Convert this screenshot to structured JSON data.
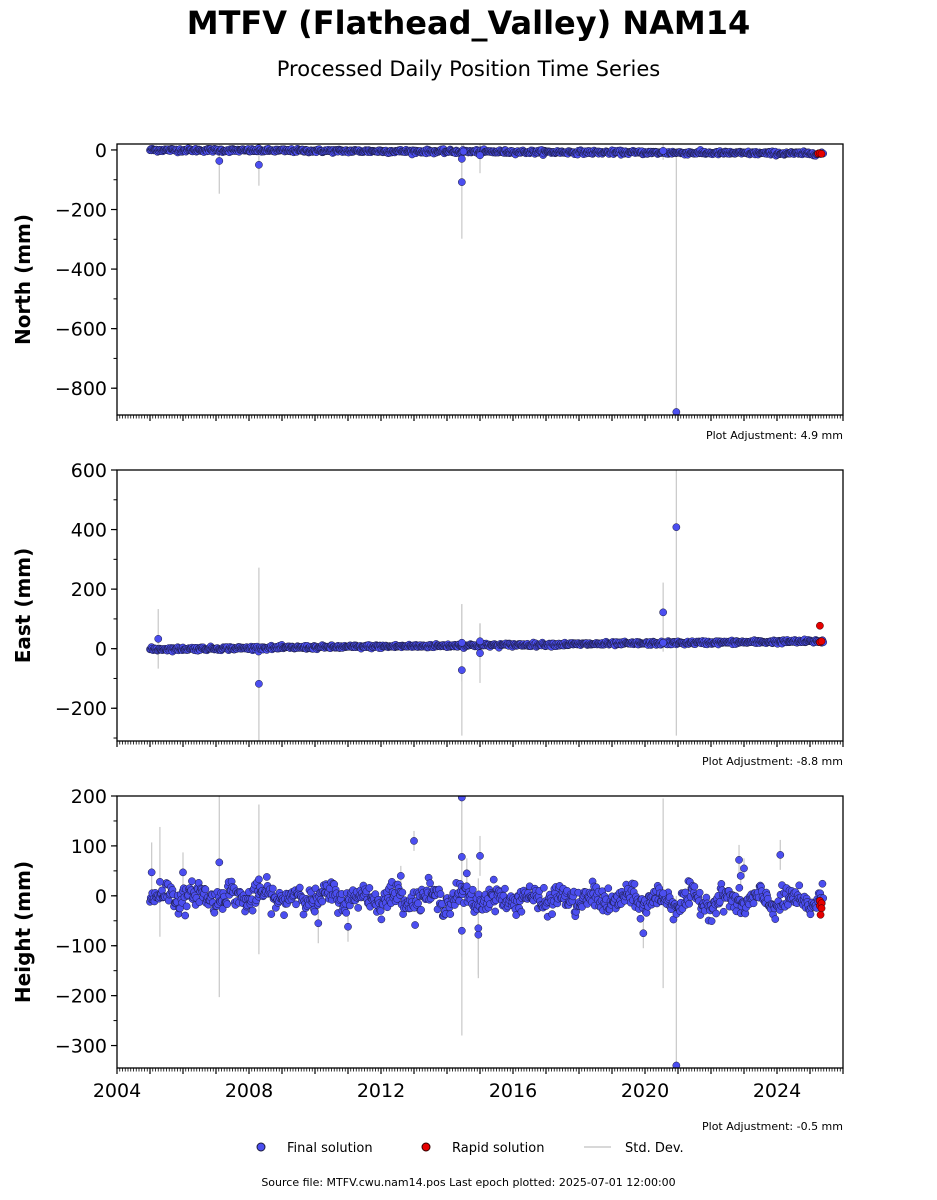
{
  "title": "MTFV (Flathead_Valley) NAM14",
  "subtitle": "Processed Daily Position Time Series",
  "footer": "Source file: MTFV.cwu.nam14.pos  Last epoch plotted: 2025-07-01 12:00:00",
  "colors": {
    "final": "#4b4ef0",
    "rapid": "#e60000",
    "stddev": "#cccccc",
    "edge": "#1a1a3a"
  },
  "legend": {
    "final_label": "Final solution",
    "rapid_label": "Rapid solution",
    "stddev_label": "Std. Dev."
  },
  "chart_data": [
    {
      "type": "scatter",
      "name_key": "north",
      "ylabel": "North (mm)",
      "xlim": [
        2004.0,
        2026.0
      ],
      "ylim": [
        -890,
        20
      ],
      "yticks": [
        0,
        -200,
        -400,
        -600,
        -800
      ],
      "yticklabels": [
        "0",
        "−200",
        "−400",
        "−600",
        "−800"
      ],
      "adjustment": "Plot Adjustment: 4.9 mm",
      "trend": {
        "x": [
          2005.0,
          2025.4
        ],
        "y": [
          0,
          -12
        ],
        "noise": 3
      },
      "outliers": [
        {
          "x": 2007.1,
          "y": -37,
          "err": 110
        },
        {
          "x": 2008.3,
          "y": -50,
          "err": 70
        },
        {
          "x": 2014.45,
          "y": -108,
          "err": 190
        },
        {
          "x": 2014.45,
          "y": -30,
          "err": 60
        },
        {
          "x": 2014.5,
          "y": -5,
          "err": 30
        },
        {
          "x": 2015.0,
          "y": -18,
          "err": 60
        },
        {
          "x": 2020.55,
          "y": -3,
          "err": 30
        },
        {
          "x": 2020.95,
          "y": -880,
          "err": 880
        }
      ],
      "rapid": [
        {
          "x": 2025.25,
          "y": -12
        },
        {
          "x": 2025.3,
          "y": -11
        },
        {
          "x": 2025.35,
          "y": -13
        }
      ]
    },
    {
      "type": "scatter",
      "name_key": "east",
      "ylabel": "East (mm)",
      "xlim": [
        2004.0,
        2026.0
      ],
      "ylim": [
        -310,
        600
      ],
      "yticks": [
        600,
        400,
        200,
        0,
        -200
      ],
      "yticklabels": [
        "600",
        "400",
        "200",
        "0",
        "−200"
      ],
      "adjustment": "Plot Adjustment: -8.8 mm",
      "trend": {
        "x": [
          2005.0,
          2025.4
        ],
        "y": [
          -2,
          25
        ],
        "noise": 3
      },
      "outliers": [
        {
          "x": 2005.25,
          "y": 33,
          "err": 100
        },
        {
          "x": 2008.3,
          "y": -118,
          "err": 390
        },
        {
          "x": 2014.45,
          "y": -72,
          "err": 220
        },
        {
          "x": 2014.45,
          "y": 20,
          "err": 130
        },
        {
          "x": 2015.0,
          "y": -15,
          "err": 100
        },
        {
          "x": 2015.0,
          "y": 25,
          "err": 60
        },
        {
          "x": 2020.55,
          "y": 122,
          "err": 100
        },
        {
          "x": 2020.55,
          "y": 20,
          "err": 30
        },
        {
          "x": 2020.95,
          "y": 408,
          "err": 700
        }
      ],
      "rapid": [
        {
          "x": 2025.3,
          "y": 77
        },
        {
          "x": 2025.3,
          "y": 22
        },
        {
          "x": 2025.35,
          "y": 25
        }
      ]
    },
    {
      "type": "scatter",
      "name_key": "height",
      "ylabel": "Height (mm)",
      "xlim": [
        2004.0,
        2026.0
      ],
      "ylim": [
        -345,
        200
      ],
      "yticks": [
        200,
        100,
        0,
        -100,
        -200,
        -300
      ],
      "yticklabels": [
        "200",
        "100",
        "0",
        "−100",
        "−200",
        "−300"
      ],
      "adjustment": "Plot Adjustment: -0.5 mm",
      "xticks": [
        2004,
        2008,
        2012,
        2016,
        2020,
        2024
      ],
      "xticklabels": [
        "2004",
        "2008",
        "2012",
        "2016",
        "2020",
        "2024"
      ],
      "trend": {
        "x": [
          2005.0,
          2025.4
        ],
        "y": [
          0,
          -12
        ],
        "noise": 12
      },
      "outliers": [
        {
          "x": 2005.05,
          "y": 47,
          "err": 60
        },
        {
          "x": 2005.3,
          "y": 28,
          "err": 110
        },
        {
          "x": 2006.0,
          "y": 47,
          "err": 40
        },
        {
          "x": 2007.1,
          "y": 67,
          "err": 270
        },
        {
          "x": 2008.3,
          "y": 33,
          "err": 150
        },
        {
          "x": 2010.1,
          "y": -55,
          "err": 40
        },
        {
          "x": 2011.0,
          "y": -62,
          "err": 30
        },
        {
          "x": 2012.6,
          "y": 40,
          "err": 20
        },
        {
          "x": 2013.0,
          "y": 110,
          "err": 20
        },
        {
          "x": 2014.45,
          "y": 197,
          "err": 60
        },
        {
          "x": 2014.45,
          "y": 78,
          "err": 200
        },
        {
          "x": 2014.45,
          "y": -70,
          "err": 210
        },
        {
          "x": 2014.6,
          "y": 45,
          "err": 30
        },
        {
          "x": 2015.0,
          "y": 80,
          "err": 40
        },
        {
          "x": 2014.95,
          "y": -65,
          "err": 100
        },
        {
          "x": 2014.95,
          "y": -78,
          "err": 80
        },
        {
          "x": 2019.95,
          "y": -75,
          "err": 30
        },
        {
          "x": 2020.55,
          "y": 5,
          "err": 190
        },
        {
          "x": 2020.95,
          "y": -340,
          "err": 340
        },
        {
          "x": 2022.85,
          "y": 72,
          "err": 30
        },
        {
          "x": 2022.9,
          "y": 40,
          "err": 20
        },
        {
          "x": 2023.0,
          "y": 55,
          "err": 20
        },
        {
          "x": 2024.1,
          "y": 82,
          "err": 30
        }
      ],
      "rapid": [
        {
          "x": 2025.3,
          "y": -10
        },
        {
          "x": 2025.3,
          "y": -20
        },
        {
          "x": 2025.32,
          "y": -38
        },
        {
          "x": 2025.35,
          "y": -15
        },
        {
          "x": 2025.35,
          "y": -25
        }
      ]
    }
  ]
}
